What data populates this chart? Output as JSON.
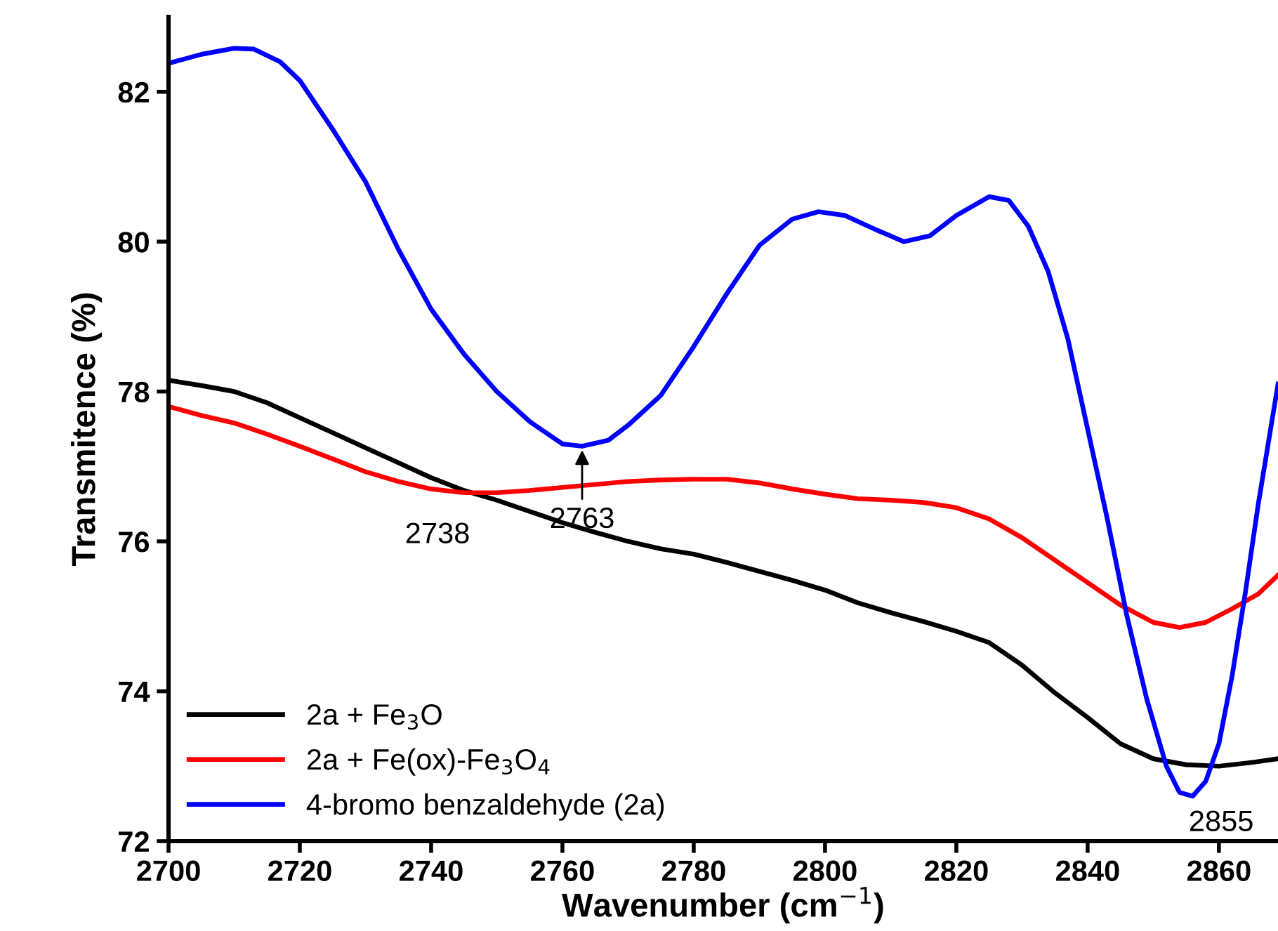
{
  "chart_data": {
    "type": "line",
    "xlabel": "Wavenumber (cm$^{−1}$)",
    "ylabel": "Transmitence (%)",
    "xlim": [
      2700,
      2869
    ],
    "ylim": [
      72,
      83
    ],
    "xticks": [
      2700,
      2720,
      2740,
      2760,
      2780,
      2800,
      2820,
      2840,
      2860
    ],
    "yticks": [
      72,
      74,
      76,
      78,
      80,
      82
    ],
    "grid": false,
    "legend": "bottom left",
    "marker": "none",
    "line_style": "solid",
    "series": [
      {
        "name": "2a + Fe$_{3}$O",
        "color": "#000000",
        "x": [
          2700,
          2705,
          2710,
          2715,
          2720,
          2725,
          2730,
          2735,
          2740,
          2745,
          2750,
          2755,
          2760,
          2765,
          2770,
          2775,
          2780,
          2785,
          2790,
          2795,
          2800,
          2805,
          2810,
          2815,
          2820,
          2825,
          2830,
          2835,
          2840,
          2845,
          2850,
          2855,
          2860,
          2865,
          2869
        ],
        "values": [
          78.15,
          78.08,
          78.0,
          77.85,
          77.65,
          77.45,
          77.25,
          77.05,
          76.85,
          76.68,
          76.55,
          76.4,
          76.25,
          76.12,
          76.0,
          75.9,
          75.83,
          75.72,
          75.6,
          75.48,
          75.35,
          75.18,
          75.05,
          74.93,
          74.8,
          74.65,
          74.35,
          73.98,
          73.65,
          73.3,
          73.1,
          73.02,
          73.0,
          73.05,
          73.1
        ]
      },
      {
        "name": "2a + Fe(ox)-Fe$_{3}$O$_{4}$",
        "color": "#ff0000",
        "x": [
          2700,
          2705,
          2710,
          2715,
          2720,
          2725,
          2730,
          2735,
          2740,
          2745,
          2750,
          2755,
          2760,
          2765,
          2770,
          2775,
          2780,
          2785,
          2790,
          2795,
          2800,
          2805,
          2810,
          2815,
          2820,
          2825,
          2830,
          2835,
          2840,
          2845,
          2850,
          2854,
          2858,
          2862,
          2866,
          2869
        ],
        "values": [
          77.8,
          77.68,
          77.58,
          77.43,
          77.27,
          77.1,
          76.93,
          76.8,
          76.7,
          76.65,
          76.65,
          76.68,
          76.72,
          76.76,
          76.8,
          76.82,
          76.83,
          76.83,
          76.78,
          76.7,
          76.63,
          76.57,
          76.55,
          76.52,
          76.45,
          76.3,
          76.05,
          75.75,
          75.45,
          75.15,
          74.92,
          74.85,
          74.92,
          75.1,
          75.3,
          75.55
        ]
      },
      {
        "name": "4-bromo benzaldehyde (2a)",
        "color": "#0000ff",
        "x": [
          2700,
          2705,
          2710,
          2713,
          2717,
          2720,
          2725,
          2730,
          2735,
          2740,
          2745,
          2750,
          2755,
          2760,
          2763,
          2767,
          2770,
          2775,
          2780,
          2785,
          2790,
          2795,
          2799,
          2803,
          2808,
          2812,
          2816,
          2820,
          2825,
          2828,
          2831,
          2834,
          2837,
          2840,
          2843,
          2846,
          2849,
          2852,
          2854,
          2856,
          2858,
          2860,
          2862,
          2864,
          2866,
          2869
        ],
        "values": [
          82.38,
          82.5,
          82.58,
          82.57,
          82.4,
          82.15,
          81.5,
          80.8,
          79.9,
          79.1,
          78.5,
          78.0,
          77.6,
          77.3,
          77.27,
          77.35,
          77.55,
          77.95,
          78.6,
          79.3,
          79.95,
          80.3,
          80.4,
          80.35,
          80.15,
          80.0,
          80.08,
          80.35,
          80.6,
          80.55,
          80.2,
          79.6,
          78.7,
          77.5,
          76.3,
          75.0,
          73.9,
          73.0,
          72.65,
          72.6,
          72.8,
          73.3,
          74.2,
          75.3,
          76.5,
          78.1
        ]
      }
    ],
    "annotations": [
      {
        "text": "2738",
        "x": 2738,
        "y": 76.65
      },
      {
        "text": "2763",
        "x": 2763,
        "y": 77.27
      },
      {
        "text": "2855",
        "x": 2855,
        "y": 72.6
      }
    ]
  }
}
